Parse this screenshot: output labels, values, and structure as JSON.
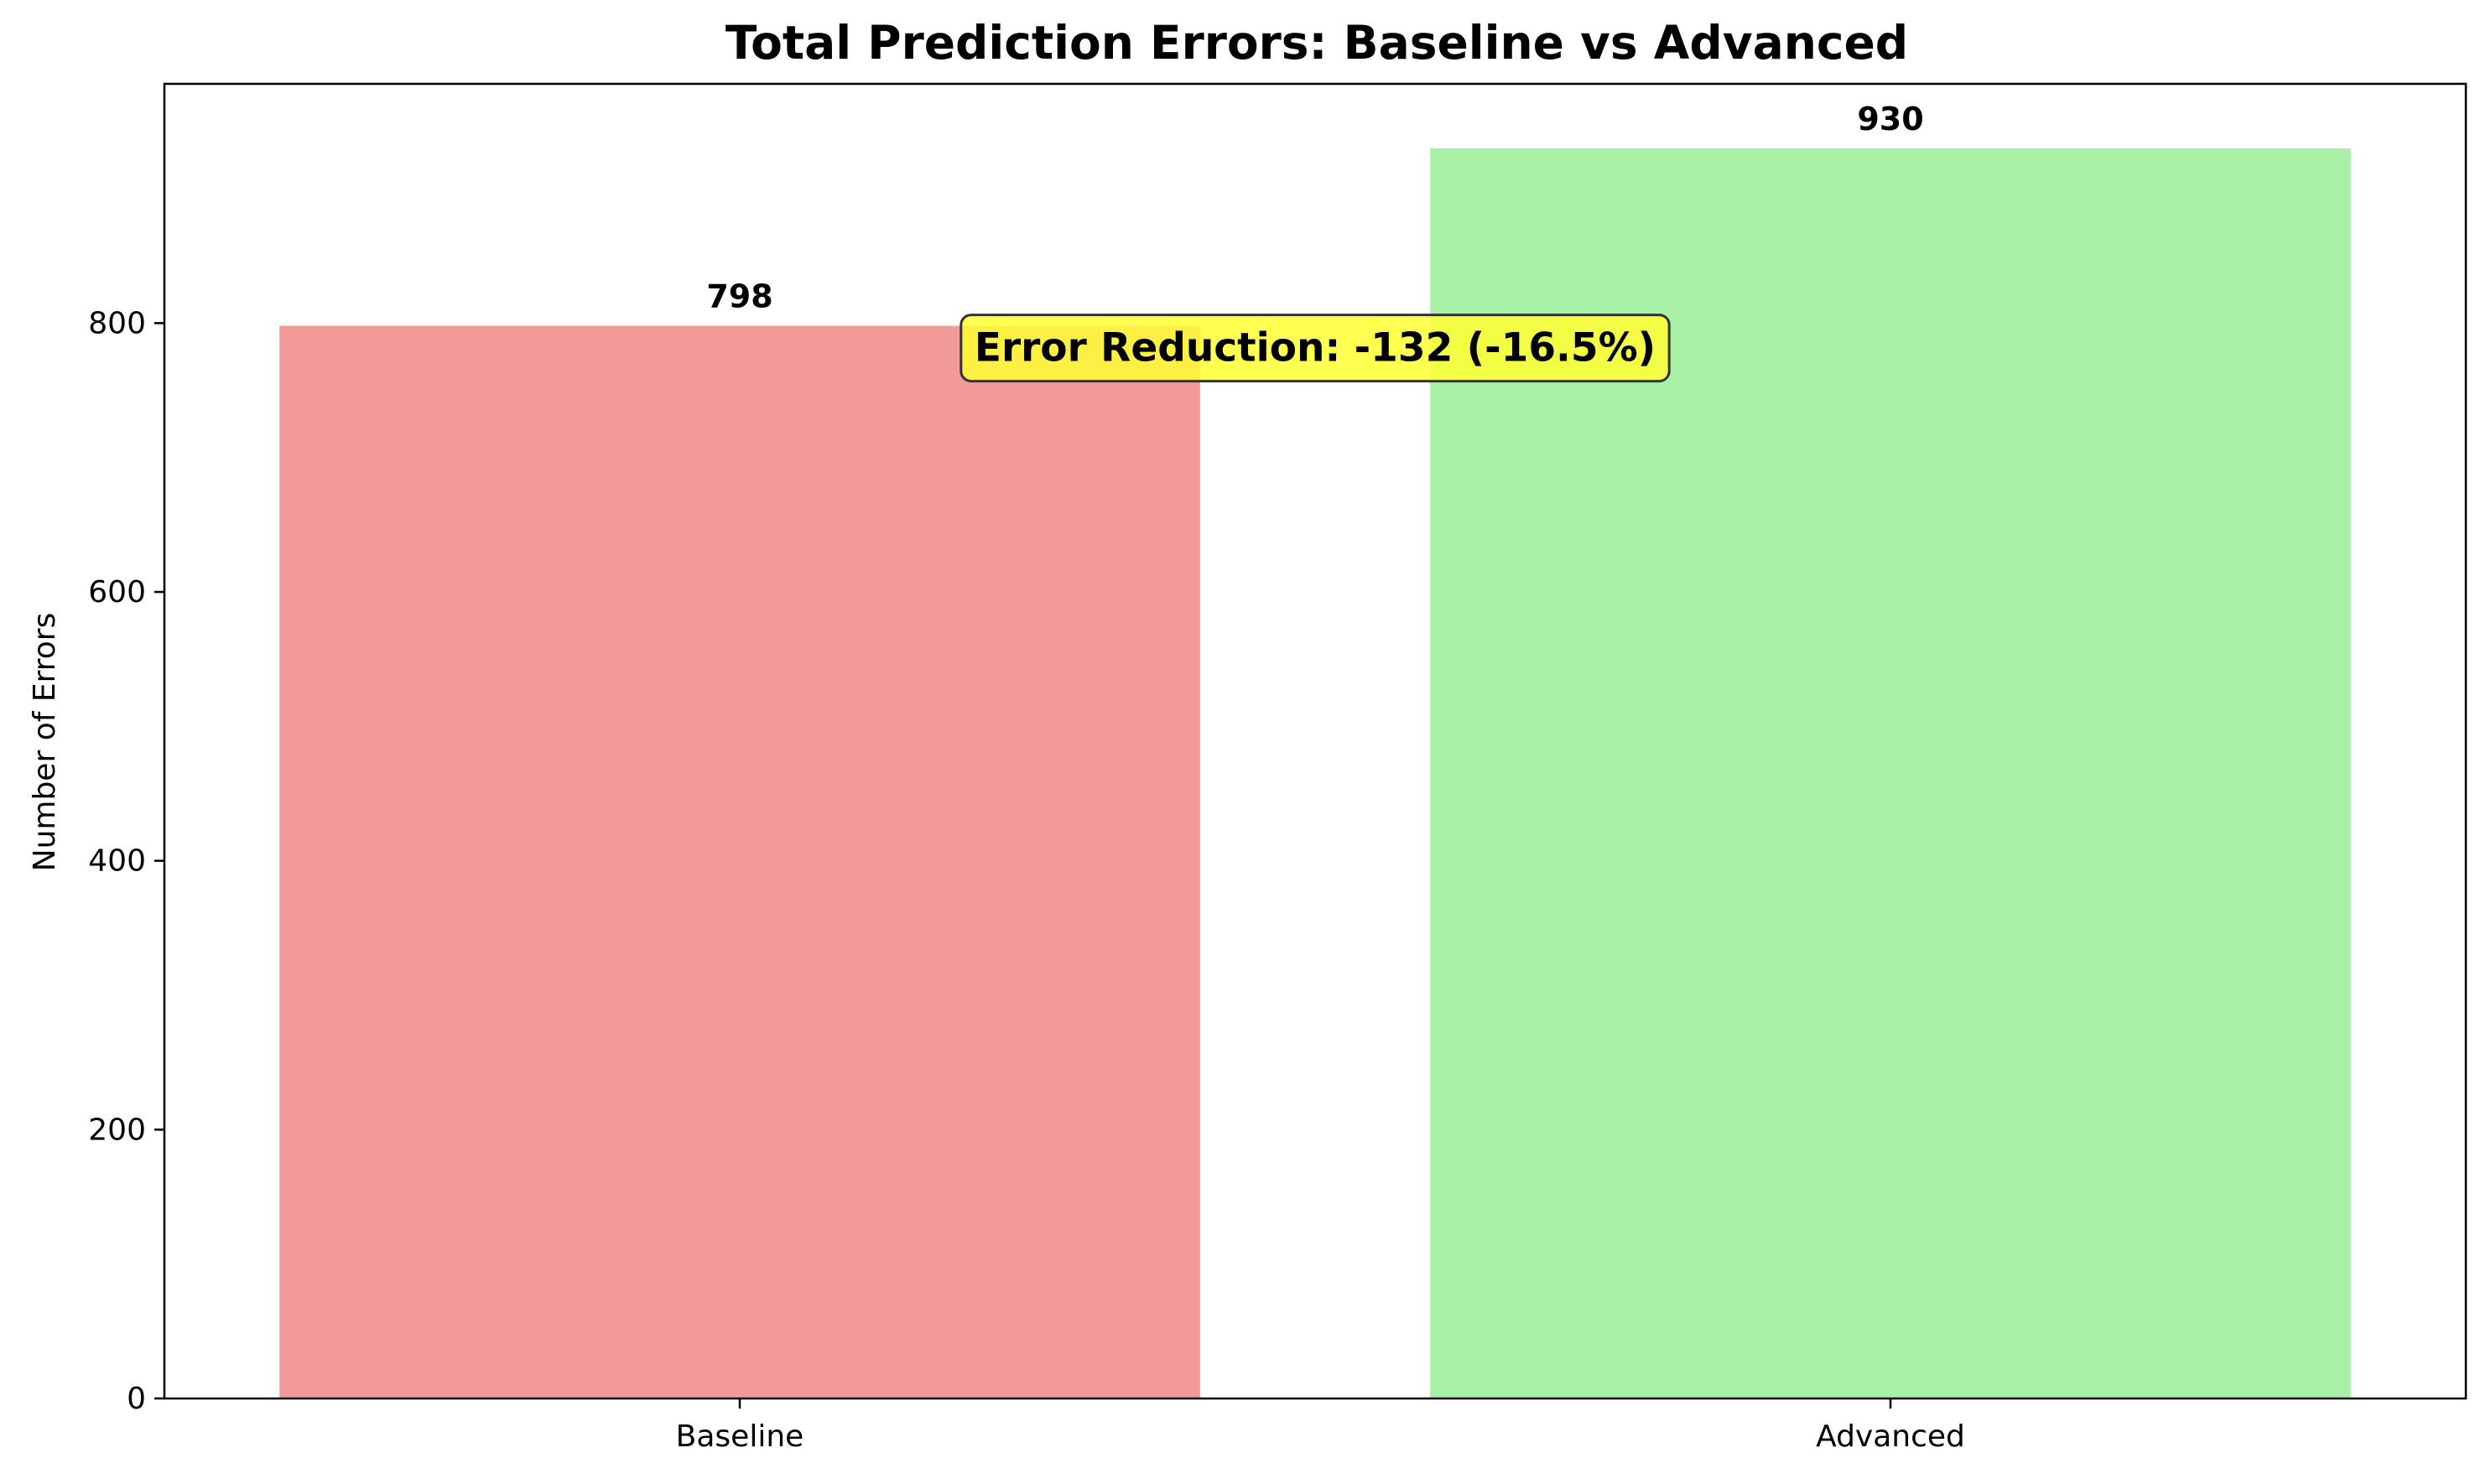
{
  "chart_data": {
    "type": "bar",
    "title": "Total Prediction Errors: Baseline vs Advanced",
    "xlabel": "",
    "ylabel": "Number of Errors",
    "categories": [
      "Baseline",
      "Advanced"
    ],
    "values": [
      798,
      930
    ],
    "data_labels": [
      "798",
      "930"
    ],
    "colors": [
      "#f29a99",
      "#a8f0a6"
    ],
    "ylim": [
      0,
      978
    ],
    "yticks": [
      0,
      200,
      400,
      600,
      800
    ],
    "grid": false,
    "annotation": {
      "text": "Error Reduction: -132 (-16.5%)",
      "background": "#ffff33",
      "border": "#333333"
    }
  }
}
